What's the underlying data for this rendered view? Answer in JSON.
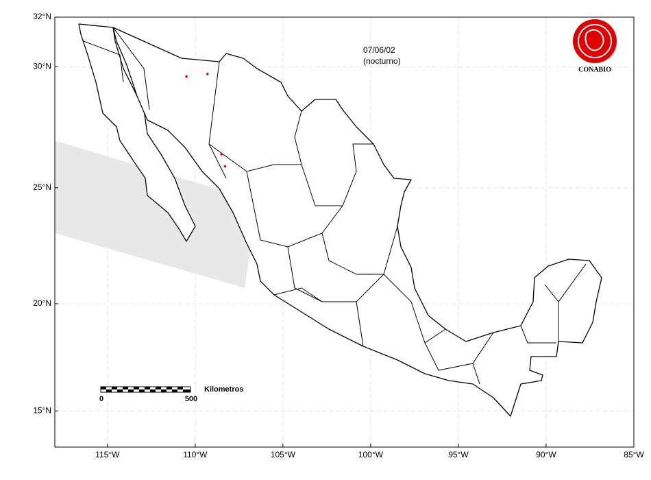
{
  "map": {
    "date": "07/06/02",
    "period": "(nocturno)",
    "logo": "CONABIO",
    "xlim": [
      -118,
      -85
    ],
    "ylim": [
      13,
      32
    ],
    "xticks": [
      {
        "value": -115,
        "label": "115°W"
      },
      {
        "value": -110,
        "label": "110°W"
      },
      {
        "value": -105,
        "label": "105°W"
      },
      {
        "value": -100,
        "label": "100°W"
      },
      {
        "value": -95,
        "label": "95°W"
      },
      {
        "value": -90,
        "label": "90°W"
      },
      {
        "value": -85,
        "label": "85°W"
      }
    ],
    "yticks": [
      {
        "value": 32,
        "label": "32°N"
      },
      {
        "value": 30,
        "label": "30°N"
      },
      {
        "value": 25,
        "label": "25°N"
      },
      {
        "value": 20,
        "label": "20°N"
      },
      {
        "value": 15,
        "label": "15°N"
      }
    ],
    "grid": true,
    "scale_bar": {
      "label": "Kilometros",
      "start": "0",
      "end": "500"
    },
    "hotspots": {
      "color": "#ff0000",
      "lon": [
        -110.5,
        -109.3,
        -108.5,
        -108.3
      ],
      "lat": [
        29.6,
        29.7,
        26.4,
        25.9
      ]
    }
  }
}
